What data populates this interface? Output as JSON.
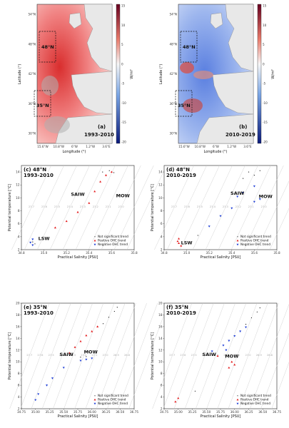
{
  "colors": {
    "not_significant": "#111111",
    "positive": "#e41a1c",
    "negative": "#1f3fd6",
    "isopycnal": "#c8c8c8"
  },
  "maps": [
    {
      "id": "a",
      "label": "(a)",
      "period": "1993-2010",
      "boxes": [
        "48°N",
        "35°N"
      ],
      "xlabel": "Longitude (°)",
      "ylabel": "Latitude (°)",
      "xticks": [
        "15.6°W",
        "10.8°W",
        "6°W",
        "1.2°W",
        "3.6°E"
      ],
      "yticks": [
        "54°N",
        "48°N",
        "42°N",
        "36°N",
        "30°N"
      ],
      "colorbar_label": "W/m²",
      "colorbar_ticks": [
        "15",
        "10",
        "5",
        "0",
        "-5",
        "-10",
        "-15",
        "-20"
      ],
      "dominant": "positive"
    },
    {
      "id": "b",
      "label": "(b)",
      "period": "2010-2019",
      "boxes": [
        "48°N",
        "35°N"
      ],
      "xlabel": "Longitude (°)",
      "ylabel": "Latitude (°)",
      "xticks": [
        "15.6°W",
        "10.8°W",
        "6°W",
        "1.2°W",
        "3.6°E"
      ],
      "yticks": [
        "54°N",
        "48°N",
        "42°N",
        "36°N",
        "30°N"
      ],
      "colorbar_label": "W/m²",
      "colorbar_ticks": [
        "15",
        "10",
        "5",
        "0",
        "-5",
        "-10",
        "-15",
        "-20"
      ],
      "dominant": "negative"
    }
  ],
  "chart_data": [
    {
      "id": "c",
      "type": "scatter",
      "title_lines": [
        "(c) 48°N",
        "1993-2010"
      ],
      "xlabel": "Practical Salinity [PSU]",
      "ylabel": "Potential temperature [°C]",
      "xlim": [
        34.8,
        35.8
      ],
      "ylim": [
        2,
        15
      ],
      "xticks": [
        "34.8",
        "35.0",
        "35.2",
        "35.4",
        "35.6",
        "35.8"
      ],
      "yticks": [
        "2",
        "4",
        "6",
        "8",
        "10",
        "12",
        "14"
      ],
      "isopycnal_labels": [
        "27.7",
        "27.6",
        "27.5",
        "27.4",
        "27.3",
        "27.2",
        "27.1",
        "27.0",
        "26.9",
        "26.8"
      ],
      "annotations": [
        {
          "text": "SAIW",
          "x": 35.3,
          "y": 10.3
        },
        {
          "text": "MOW",
          "x": 35.7,
          "y": 10.1
        },
        {
          "text": "LSW",
          "x": 35.0,
          "y": 3.5
        }
      ],
      "legend": [
        "Not significant trend",
        "Positive OHC trend",
        "Negative OHC trend"
      ],
      "legend_position": "bottom-right",
      "series": [
        {
          "class": "not_significant",
          "points": [
            [
              34.9,
              3.2
            ],
            [
              34.92,
              2.9
            ],
            [
              35.52,
              14.0
            ],
            [
              35.58,
              14.2
            ],
            [
              35.62,
              13.9
            ]
          ]
        },
        {
          "class": "positive",
          "points": [
            [
              35.1,
              5.4
            ],
            [
              35.2,
              6.4
            ],
            [
              35.3,
              7.8
            ],
            [
              35.4,
              9.2
            ],
            [
              35.45,
              11.0
            ],
            [
              35.5,
              12.5
            ],
            [
              35.55,
              13.5
            ],
            [
              35.6,
              14.0
            ]
          ]
        },
        {
          "class": "negative",
          "points": [
            [
              34.9,
              3.6
            ],
            [
              34.88,
              3.1
            ],
            [
              34.9,
              2.7
            ]
          ]
        }
      ]
    },
    {
      "id": "d",
      "type": "scatter",
      "title_lines": [
        "(d) 48°N",
        "2010-2019"
      ],
      "xlabel": "Practical Salinity [PSU]",
      "ylabel": "Potential temperature [°C]",
      "xlim": [
        34.8,
        35.8
      ],
      "ylim": [
        2,
        15
      ],
      "xticks": [
        "34.8",
        "35.0",
        "35.2",
        "35.4",
        "35.6",
        "35.8"
      ],
      "yticks": [
        "2",
        "4",
        "6",
        "8",
        "10",
        "12",
        "14"
      ],
      "isopycnal_labels": [
        "27.7",
        "27.6",
        "27.5",
        "27.4",
        "27.3",
        "27.2",
        "27.1",
        "27.0",
        "26.9",
        "26.8"
      ],
      "annotations": [
        {
          "text": "SAIW",
          "x": 35.45,
          "y": 10.5
        },
        {
          "text": "MOW",
          "x": 35.7,
          "y": 10.0
        },
        {
          "text": "LSW",
          "x": 35.0,
          "y": 2.8
        }
      ],
      "legend": [
        "Not significant trend",
        "Positive OHC trend",
        "Negative OHC trend"
      ],
      "legend_position": "bottom-right",
      "series": [
        {
          "class": "not_significant",
          "points": [
            [
              35.5,
              13.0
            ],
            [
              35.55,
              14.0
            ],
            [
              35.6,
              13.5
            ],
            [
              35.65,
              14.2
            ],
            [
              35.1,
              4.2
            ]
          ]
        },
        {
          "class": "positive",
          "points": [
            [
              34.93,
              3.0
            ],
            [
              34.93,
              3.7
            ],
            [
              34.95,
              2.6
            ],
            [
              34.92,
              3.3
            ]
          ]
        },
        {
          "class": "negative",
          "points": [
            [
              35.2,
              5.6
            ],
            [
              35.3,
              7.2
            ],
            [
              35.4,
              8.4
            ],
            [
              35.45,
              10.2
            ],
            [
              35.5,
              10.8
            ],
            [
              35.6,
              11.8
            ],
            [
              35.6,
              9.4
            ],
            [
              35.65,
              9.8
            ]
          ]
        }
      ]
    },
    {
      "id": "e",
      "type": "scatter",
      "title_lines": [
        "(e) 35°N",
        "1993-2010"
      ],
      "xlabel": "Practical Salinity [PSU]",
      "ylabel": "Potential temperature [°C]",
      "xlim": [
        34.75,
        36.75
      ],
      "ylim": [
        2,
        20
      ],
      "xticks": [
        "34.75",
        "35.00",
        "35.25",
        "35.50",
        "35.75",
        "36.00",
        "36.25",
        "36.50",
        "36.75"
      ],
      "yticks": [
        "2",
        "4",
        "6",
        "8",
        "10",
        "12",
        "14",
        "16",
        "18",
        "20"
      ],
      "isopycnal_labels": [
        "27.7",
        "27.6",
        "27.5",
        "27.4",
        "27.3",
        "27.2",
        "27.1",
        "27.0",
        "26.9",
        "26.8",
        "26.7",
        "26.6"
      ],
      "annotations": [
        {
          "text": "SAIW",
          "x": 35.55,
          "y": 11.0
        },
        {
          "text": "MOW",
          "x": 35.98,
          "y": 11.4
        }
      ],
      "legend": [
        "Not significant trend",
        "Positive OHC trend",
        "Negative OHC trend"
      ],
      "legend_position": "bottom-right",
      "series": [
        {
          "class": "not_significant",
          "points": [
            [
              36.2,
              16.5
            ],
            [
              36.3,
              17.6
            ],
            [
              36.4,
              18.6
            ],
            [
              36.45,
              19.3
            ],
            [
              35.8,
              10.8
            ],
            [
              35.9,
              10.9
            ]
          ]
        },
        {
          "class": "positive",
          "points": [
            [
              35.6,
              11.5
            ],
            [
              35.7,
              12.5
            ],
            [
              35.8,
              13.5
            ],
            [
              35.9,
              14.5
            ],
            [
              36.0,
              15.2
            ],
            [
              36.1,
              16.0
            ]
          ]
        },
        {
          "class": "negative",
          "points": [
            [
              35.0,
              3.5
            ],
            [
              35.05,
              4.5
            ],
            [
              35.2,
              6.0
            ],
            [
              35.3,
              7.2
            ],
            [
              35.5,
              9.0
            ],
            [
              35.8,
              10.2
            ],
            [
              35.9,
              10.4
            ],
            [
              36.0,
              10.6
            ]
          ]
        }
      ]
    },
    {
      "id": "f",
      "type": "scatter",
      "title_lines": [
        "(f) 35°N",
        "2010-2019"
      ],
      "xlabel": "Practical Salinity [PSU]",
      "ylabel": "Potential temperature [°C]",
      "xlim": [
        34.75,
        36.75
      ],
      "ylim": [
        2,
        20
      ],
      "xticks": [
        "34.75",
        "35.00",
        "35.25",
        "35.50",
        "35.75",
        "36.00",
        "36.25",
        "36.50",
        "36.75"
      ],
      "yticks": [
        "2",
        "4",
        "6",
        "8",
        "10",
        "12",
        "14",
        "16",
        "18",
        "20"
      ],
      "isopycnal_labels": [
        "27.7",
        "27.6",
        "27.5",
        "27.4",
        "27.3",
        "27.2",
        "27.1",
        "27.0",
        "26.9",
        "26.8",
        "26.7",
        "26.6"
      ],
      "annotations": [
        {
          "text": "SAIW",
          "x": 35.55,
          "y": 11.0
        },
        {
          "text": "MOW",
          "x": 35.95,
          "y": 10.7
        }
      ],
      "legend": [
        "Not significant trend",
        "Positive OHC trend",
        "Negative OHC trend"
      ],
      "legend_position": "bottom-right",
      "series": [
        {
          "class": "not_significant",
          "points": [
            [
              36.2,
              16.4
            ],
            [
              36.3,
              17.5
            ],
            [
              36.4,
              18.5
            ],
            [
              36.45,
              19.2
            ],
            [
              35.3,
              5.0
            ]
          ]
        },
        {
          "class": "positive",
          "points": [
            [
              34.95,
              3.2
            ],
            [
              35.0,
              3.8
            ],
            [
              35.7,
              11.0
            ],
            [
              35.95,
              10.0
            ],
            [
              36.0,
              9.5
            ],
            [
              35.9,
              9.0
            ]
          ]
        },
        {
          "class": "negative",
          "points": [
            [
              35.6,
              11.8
            ],
            [
              35.8,
              12.8
            ],
            [
              35.9,
              13.6
            ],
            [
              36.0,
              14.4
            ],
            [
              36.1,
              15.2
            ],
            [
              36.2,
              15.9
            ],
            [
              35.85,
              12.0
            ]
          ]
        }
      ]
    }
  ]
}
